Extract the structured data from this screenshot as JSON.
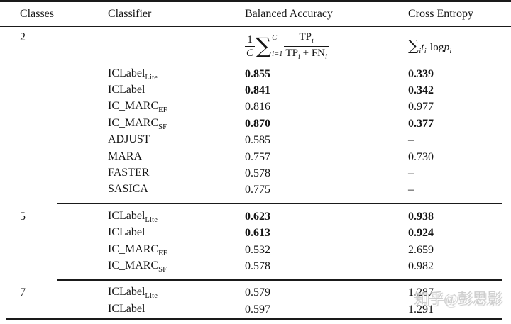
{
  "header": {
    "columns": [
      "Classes",
      "Classifier",
      "Balanced Accuracy",
      "Cross Entropy"
    ]
  },
  "formulas": {
    "balanced_accuracy": {
      "coef_num": "1",
      "coef_den": "C",
      "sigma": "∑",
      "sum_upper": "C",
      "sum_lower": "i=1",
      "num_base": "TP",
      "num_sub": "i",
      "den_base1": "TP",
      "den_sub1": "i",
      "plus": "+",
      "den_base2": "FN",
      "den_sub2": "i"
    },
    "cross_entropy": {
      "sigma": "∑",
      "sigma_sub": "i",
      "var1": "t",
      "var1_sub": "i",
      "log": "log",
      "var2": "p",
      "var2_sub": "i"
    }
  },
  "sections": [
    {
      "classes": "2",
      "rows": [
        {
          "name": "ICLabel",
          "sub": "Lite",
          "ba": "0.855",
          "ba_bold": true,
          "ce": "0.339",
          "ce_bold": true
        },
        {
          "name": "ICLabel",
          "sub": "",
          "ba": "0.841",
          "ba_bold": true,
          "ce": "0.342",
          "ce_bold": true
        },
        {
          "name": "IC_MARC",
          "sub": "EF",
          "ba": "0.816",
          "ba_bold": false,
          "ce": "0.977",
          "ce_bold": false
        },
        {
          "name": "IC_MARC",
          "sub": "SF",
          "ba": "0.870",
          "ba_bold": true,
          "ce": "0.377",
          "ce_bold": true
        },
        {
          "name": "ADJUST",
          "sub": "",
          "ba": "0.585",
          "ba_bold": false,
          "ce": "–",
          "ce_bold": false
        },
        {
          "name": "MARA",
          "sub": "",
          "ba": "0.757",
          "ba_bold": false,
          "ce": "0.730",
          "ce_bold": false
        },
        {
          "name": "FASTER",
          "sub": "",
          "ba": "0.578",
          "ba_bold": false,
          "ce": "–",
          "ce_bold": false
        },
        {
          "name": "SASICA",
          "sub": "",
          "ba": "0.775",
          "ba_bold": false,
          "ce": "–",
          "ce_bold": false
        }
      ]
    },
    {
      "classes": "5",
      "rows": [
        {
          "name": "ICLabel",
          "sub": "Lite",
          "ba": "0.623",
          "ba_bold": true,
          "ce": "0.938",
          "ce_bold": true
        },
        {
          "name": "ICLabel",
          "sub": "",
          "ba": "0.613",
          "ba_bold": true,
          "ce": "0.924",
          "ce_bold": true
        },
        {
          "name": "IC_MARC",
          "sub": "EF",
          "ba": "0.532",
          "ba_bold": false,
          "ce": "2.659",
          "ce_bold": false
        },
        {
          "name": "IC_MARC",
          "sub": "SF",
          "ba": "0.578",
          "ba_bold": false,
          "ce": "0.982",
          "ce_bold": false
        }
      ]
    },
    {
      "classes": "7",
      "rows": [
        {
          "name": "ICLabel",
          "sub": "Lite",
          "ba": "0.579",
          "ba_bold": false,
          "ce": "1.287",
          "ce_bold": false
        },
        {
          "name": "ICLabel",
          "sub": "",
          "ba": "0.597",
          "ba_bold": false,
          "ce": "1.291",
          "ce_bold": false
        }
      ]
    }
  ],
  "watermark": "知乎@彭思影"
}
